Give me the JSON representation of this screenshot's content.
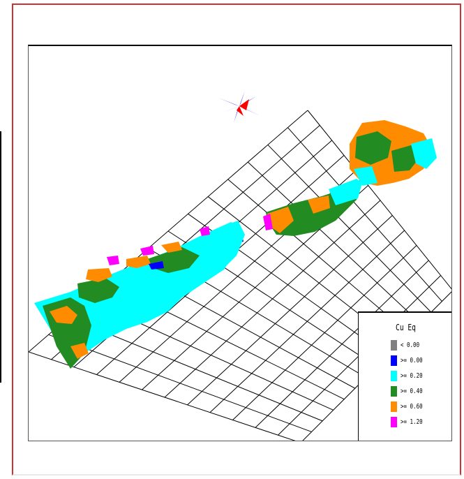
{
  "legend": {
    "title": "Cu Eq",
    "items": [
      {
        "label": "< 0.00",
        "color": "#808080"
      },
      {
        "label": ">= 0.00",
        "color": "#0000ff"
      },
      {
        "label": ">= 0.20",
        "color": "#00ffff"
      },
      {
        "label": ">= 0.40",
        "color": "#228b22"
      },
      {
        "label": ">= 0.60",
        "color": "#ff8c00"
      },
      {
        "label": ">= 1.20",
        "color": "#ff00ff"
      }
    ]
  },
  "colors": {
    "frame": "#cc3333",
    "grid": "#000000",
    "compass_blue": "#0000ff",
    "compass_red": "#ff0000"
  },
  "icons": {
    "compass": "north-arrow-compass-icon"
  }
}
